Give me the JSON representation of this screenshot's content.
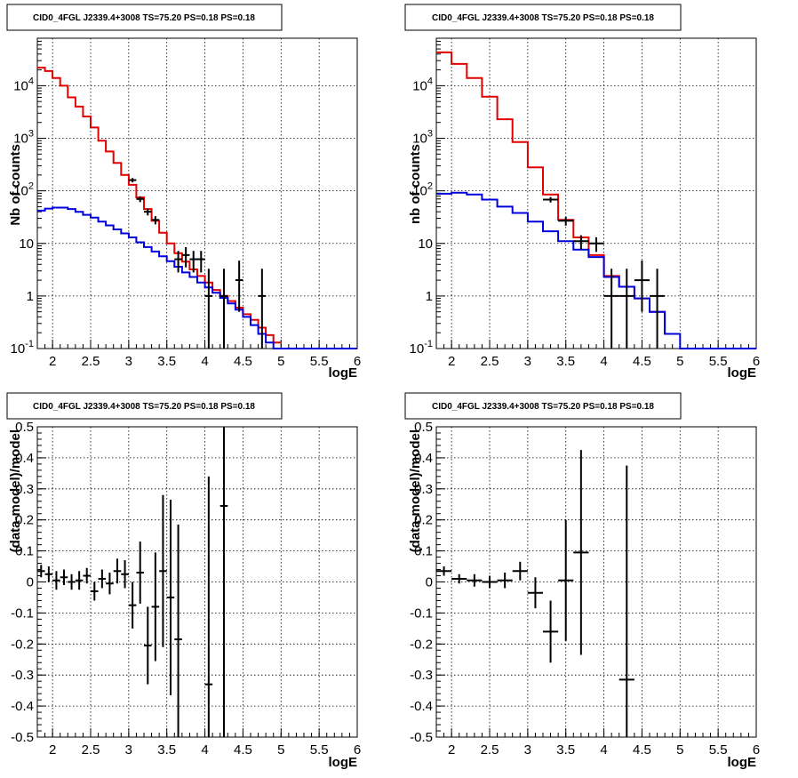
{
  "colors": {
    "data": "#000000",
    "model": "#e00000",
    "component": "#0000dd"
  },
  "chart_data": [
    {
      "type": "line",
      "title": "CID0_4FGL J2339.4+3008 TS=75.20 PS=0.18 PS=0.18",
      "xlabel": "logE",
      "ylabel": "Nb of counts",
      "xlim": [
        1.8,
        6.0
      ],
      "ylim": [
        0.1,
        80000
      ],
      "yscale": "log",
      "grid": true,
      "xticks": [
        "2",
        "2.5",
        "3",
        "3.5",
        "4",
        "4.5",
        "5",
        "5.5",
        "6"
      ],
      "yticks": [
        "10^-1",
        "1",
        "10",
        "10^2",
        "10^3",
        "10^4"
      ],
      "series": [
        {
          "kind": "step",
          "style": "model",
          "edges": [
            1.8,
            1.9,
            2.0,
            2.1,
            2.2,
            2.3,
            2.4,
            2.5,
            2.6,
            2.7,
            2.8,
            2.9,
            3.0,
            3.1,
            3.2,
            3.3,
            3.4,
            3.5,
            3.6,
            3.7,
            3.8,
            3.9,
            4.0,
            4.1,
            4.2,
            4.3,
            4.4,
            4.5,
            4.6,
            4.7,
            4.8,
            4.9,
            5.0
          ],
          "values": [
            22000,
            19000,
            14000,
            10000,
            6000,
            4000,
            2600,
            1600,
            900,
            560,
            340,
            200,
            130,
            75,
            45,
            27,
            16,
            10,
            6.5,
            4.5,
            3.2,
            2.4,
            1.8,
            1.3,
            1.0,
            0.8,
            0.6,
            0.45,
            0.35,
            0.25,
            0.18,
            0.13
          ]
        },
        {
          "kind": "step",
          "style": "component",
          "edges": [
            1.8,
            1.9,
            2.0,
            2.1,
            2.2,
            2.3,
            2.4,
            2.5,
            2.6,
            2.7,
            2.8,
            2.9,
            3.0,
            3.1,
            3.2,
            3.3,
            3.4,
            3.5,
            3.6,
            3.7,
            3.8,
            3.9,
            4.0,
            4.1,
            4.2,
            4.3,
            4.4,
            4.5,
            4.6,
            4.7,
            4.8,
            4.9,
            5.0,
            5.1,
            5.2,
            5.3,
            5.4,
            5.5,
            5.6,
            5.7,
            5.8,
            5.9,
            6.0
          ],
          "values": [
            42,
            46,
            48,
            48,
            45,
            40,
            35,
            31,
            26,
            22,
            18.5,
            15.5,
            13,
            10.5,
            8.5,
            7,
            5.7,
            4.6,
            3.6,
            2.8,
            2.3,
            1.8,
            1.45,
            1.15,
            0.92,
            0.72,
            0.55,
            0.4,
            0.28,
            0.19,
            0.13,
            0.1,
            0.1,
            0.1,
            0.1,
            0.1,
            0.1,
            0.1,
            0.1,
            0.1,
            0.1,
            0.1
          ]
        },
        {
          "kind": "errorbar",
          "style": "data",
          "x": [
            3.05,
            3.15,
            3.25,
            3.35,
            3.65,
            3.75,
            3.85,
            3.95,
            4.05,
            4.25,
            4.45,
            4.75
          ],
          "y": [
            160,
            70,
            40,
            28,
            5,
            6,
            5,
            5,
            1,
            1,
            2,
            1
          ],
          "yerr_low": [
            15,
            9,
            6,
            5,
            2.2,
            2.5,
            2.2,
            2.2,
            0.9,
            0.9,
            1.5,
            0.9
          ],
          "yerr_high": [
            15,
            9,
            6,
            5,
            2.2,
            2.5,
            2.2,
            2.2,
            2.3,
            2.3,
            2.7,
            2.3
          ],
          "xerr": 0.05
        }
      ]
    },
    {
      "type": "line",
      "title": "CID0_4FGL J2339.4+3008 TS=75.20 PS=0.18 PS=0.18",
      "xlabel": "logE",
      "ylabel": "nb of counts",
      "xlim": [
        1.8,
        6.0
      ],
      "ylim": [
        0.1,
        80000
      ],
      "yscale": "log",
      "grid": true,
      "xticks": [
        "2",
        "2.5",
        "3",
        "3.5",
        "4",
        "4.5",
        "5",
        "5.5",
        "6"
      ],
      "yticks": [
        "10^-1",
        "1",
        "10",
        "10^2",
        "10^3",
        "10^4"
      ],
      "series": [
        {
          "kind": "step",
          "style": "model",
          "edges": [
            1.8,
            2.0,
            2.2,
            2.4,
            2.6,
            2.8,
            3.0,
            3.2,
            3.4,
            3.6,
            3.8,
            4.0,
            4.2,
            4.4,
            4.6,
            4.8,
            5.0
          ],
          "values": [
            43000,
            26000,
            14000,
            6200,
            2300,
            850,
            280,
            85,
            28,
            13,
            6,
            2.4,
            1.5,
            0.9,
            0.5,
            0.19
          ]
        },
        {
          "kind": "step",
          "style": "component",
          "edges": [
            1.8,
            2.0,
            2.2,
            2.4,
            2.6,
            2.8,
            3.0,
            3.2,
            3.4,
            3.6,
            3.8,
            4.0,
            4.2,
            4.4,
            4.6,
            4.8,
            5.0,
            5.2,
            5.4,
            5.6,
            5.8,
            6.0
          ],
          "values": [
            88,
            92,
            85,
            68,
            50,
            38,
            26,
            17,
            11,
            7.6,
            5.5,
            2.3,
            1.5,
            0.9,
            0.5,
            0.19,
            0.1,
            0.1,
            0.1,
            0.1,
            0.1
          ]
        },
        {
          "kind": "errorbar",
          "style": "data",
          "x": [
            3.3,
            3.5,
            3.7,
            3.9,
            4.1,
            4.3,
            4.5,
            4.7
          ],
          "y": [
            68,
            27,
            11,
            10,
            1,
            1,
            2,
            1
          ],
          "yerr_low": [
            8,
            5.2,
            3.3,
            3.1,
            0.9,
            0.9,
            1.5,
            0.9
          ],
          "yerr_high": [
            8,
            5.2,
            3.3,
            3.1,
            2.3,
            2.3,
            2.7,
            2.3
          ],
          "xerr": 0.1
        }
      ]
    },
    {
      "type": "scatter",
      "title": "CID0_4FGL J2339.4+3008 TS=75.20 PS=0.18 PS=0.18",
      "xlabel": "logE",
      "ylabel": "(data-model)/model",
      "xlim": [
        1.8,
        6.0
      ],
      "ylim": [
        -0.5,
        0.5
      ],
      "yscale": "linear",
      "grid": true,
      "xticks": [
        "2",
        "2.5",
        "3",
        "3.5",
        "4",
        "4.5",
        "5",
        "5.5",
        "6"
      ],
      "yticks": [
        "-0.5",
        "-0.4",
        "-0.3",
        "-0.2",
        "-0.1",
        "0",
        "0.1",
        "0.2",
        "0.3",
        "0.4",
        "0.5"
      ],
      "series": [
        {
          "kind": "errorbar",
          "style": "data",
          "x": [
            1.85,
            1.95,
            2.05,
            2.15,
            2.25,
            2.35,
            2.45,
            2.55,
            2.65,
            2.75,
            2.85,
            2.95,
            3.05,
            3.15,
            3.25,
            3.35,
            3.45,
            3.55,
            3.65,
            4.05,
            4.25
          ],
          "y": [
            0.035,
            0.025,
            0.005,
            0.015,
            0.0,
            0.005,
            0.02,
            -0.03,
            0.01,
            -0.005,
            0.035,
            0.025,
            -0.075,
            0.03,
            -0.205,
            -0.08,
            0.035,
            -0.05,
            -0.185,
            -0.33,
            0.245
          ],
          "yerr": [
            0.02,
            0.025,
            0.03,
            0.025,
            0.025,
            0.03,
            0.025,
            0.03,
            0.03,
            0.035,
            0.04,
            0.045,
            0.075,
            0.1,
            0.125,
            0.175,
            0.245,
            0.315,
            0.37,
            0.67,
            0.76
          ],
          "xerr": 0.05
        }
      ]
    },
    {
      "type": "scatter",
      "title": "CID0_4FGL J2339.4+3008 TS=75.20 PS=0.18 PS=0.18",
      "xlabel": "logE",
      "ylabel": "(data-model)/model",
      "xlim": [
        1.8,
        6.0
      ],
      "ylim": [
        -0.5,
        0.5
      ],
      "yscale": "linear",
      "grid": true,
      "xticks": [
        "2",
        "2.5",
        "3",
        "3.5",
        "4",
        "4.5",
        "5",
        "5.5",
        "6"
      ],
      "yticks": [
        "-0.5",
        "-0.4",
        "-0.3",
        "-0.2",
        "-0.1",
        "0",
        "0.1",
        "0.2",
        "0.3",
        "0.4",
        "0.5"
      ],
      "series": [
        {
          "kind": "errorbar",
          "style": "data",
          "x": [
            1.9,
            2.1,
            2.3,
            2.5,
            2.7,
            2.9,
            3.1,
            3.3,
            3.5,
            3.7,
            4.3
          ],
          "y": [
            0.035,
            0.01,
            0.005,
            0.0,
            0.005,
            0.035,
            -0.035,
            -0.16,
            0.005,
            0.095,
            -0.315
          ],
          "yerr": [
            0.015,
            0.015,
            0.02,
            0.02,
            0.025,
            0.03,
            0.05,
            0.1,
            0.195,
            0.33,
            0.69
          ],
          "xerr": 0.1
        }
      ]
    }
  ]
}
